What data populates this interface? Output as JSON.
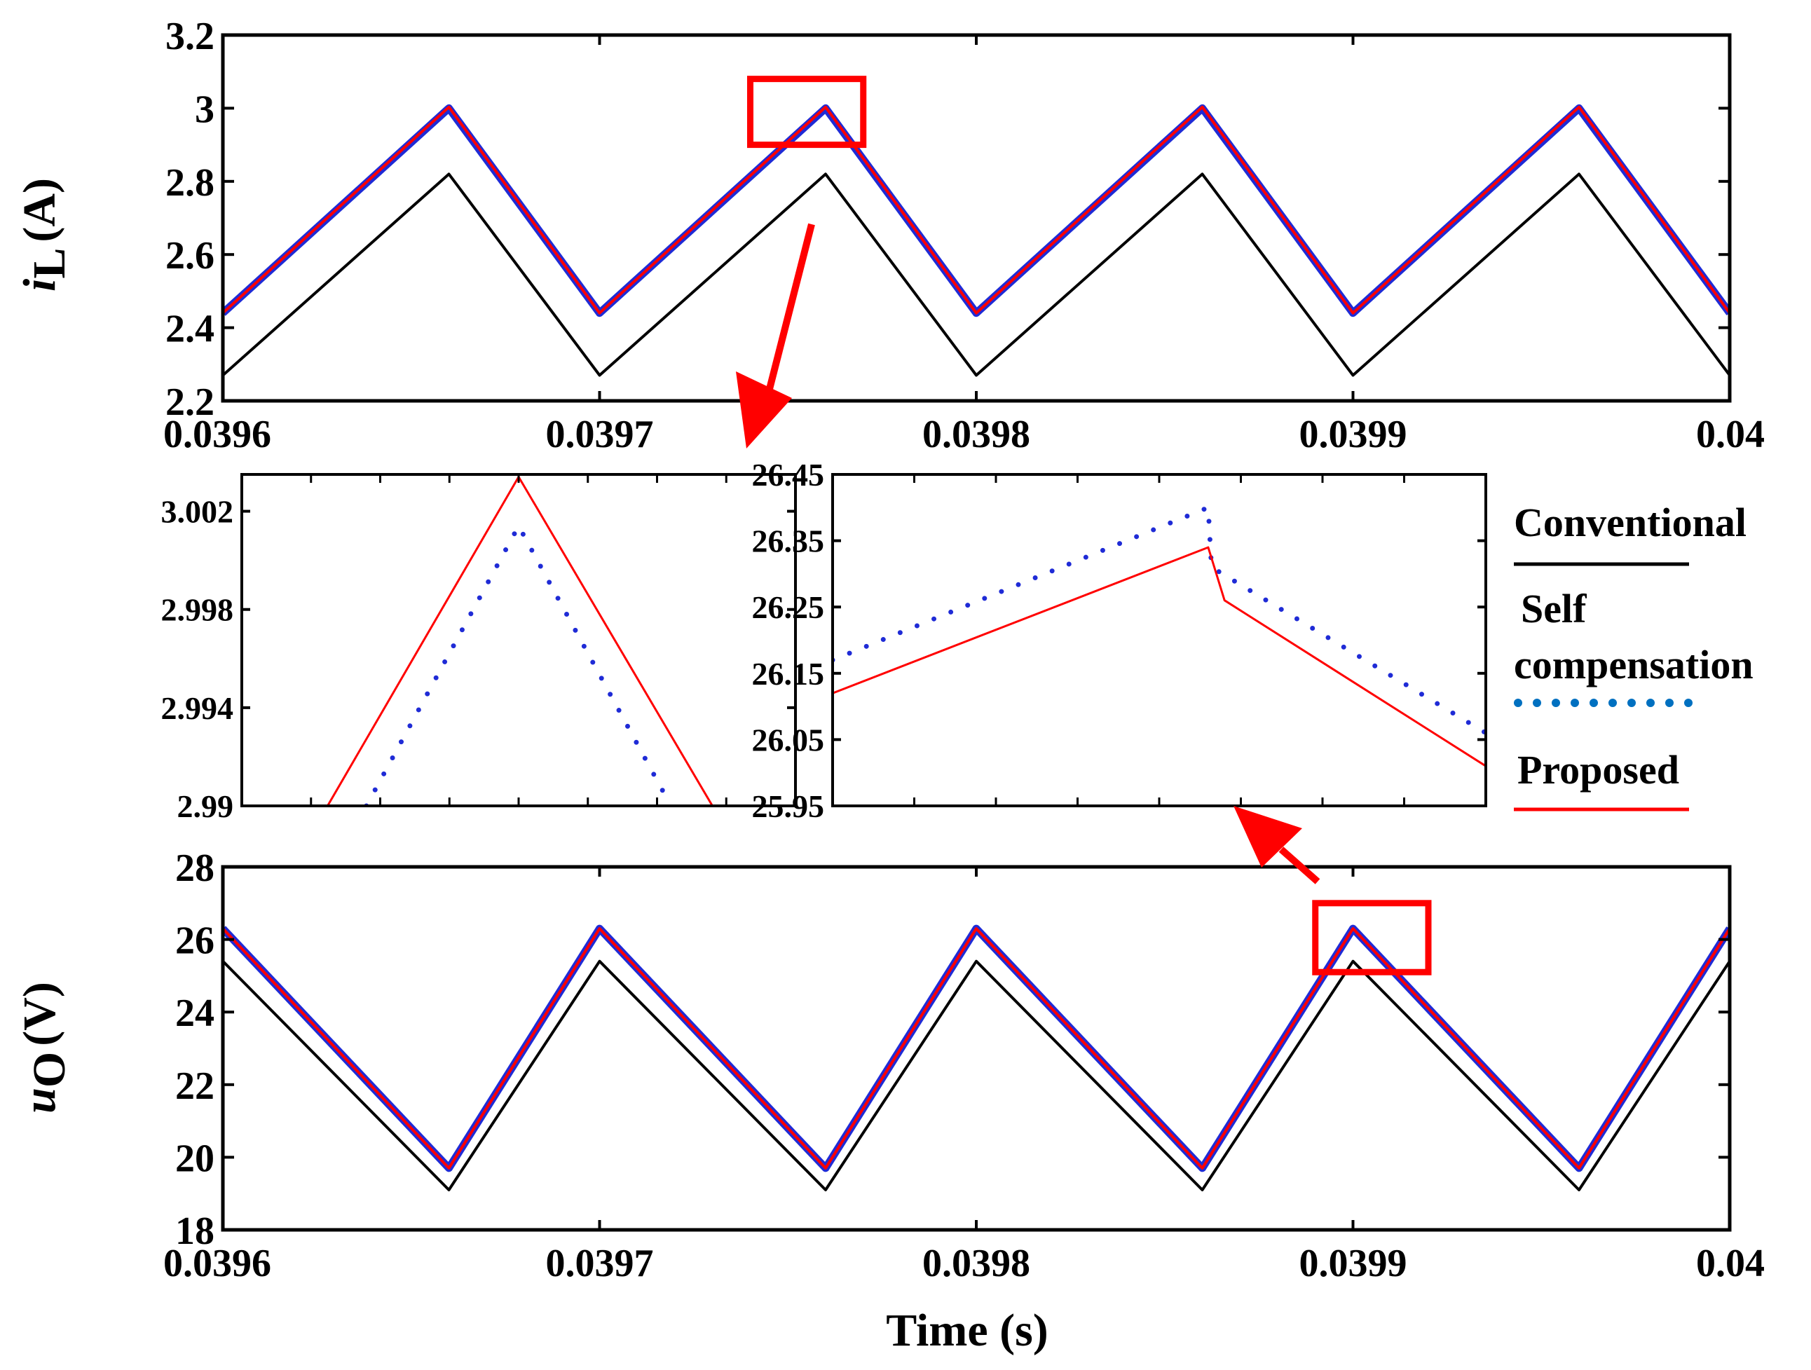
{
  "chart_data": [
    {
      "type": "line",
      "id": "top",
      "title": "",
      "xlabel": "",
      "ylabel": {
        "main": "i",
        "sub": "L",
        "unit": "(A)"
      },
      "xlim": [
        0.0396,
        0.04
      ],
      "ylim": [
        2.2,
        3.2
      ],
      "xticks": [
        0.0396,
        0.0397,
        0.0398,
        0.0399,
        0.04
      ],
      "xtick_labels": [
        "0.0396",
        "0.0397",
        "0.0398",
        "0.0399",
        "0.04"
      ],
      "yticks": [
        2.2,
        2.4,
        2.6,
        2.8,
        3.0,
        3.2
      ],
      "ytick_labels": [
        "2.2",
        "2.4",
        "2.6",
        "2.8",
        "3",
        "3.2"
      ],
      "series": [
        {
          "name": "Conventional",
          "x": [
            0.0396,
            0.03966,
            0.0397,
            0.03976,
            0.0398,
            0.03986,
            0.0399,
            0.03996,
            0.04
          ],
          "values": [
            2.27,
            2.82,
            2.27,
            2.82,
            2.27,
            2.82,
            2.27,
            2.82,
            2.27
          ]
        },
        {
          "name": "Self compensation",
          "x": [
            0.0396,
            0.03966,
            0.0397,
            0.03976,
            0.0398,
            0.03986,
            0.0399,
            0.03996,
            0.04
          ],
          "values": [
            2.44,
            3.0,
            2.44,
            3.0,
            2.44,
            3.0,
            2.44,
            3.0,
            2.44
          ]
        },
        {
          "name": "Proposed",
          "x": [
            0.0396,
            0.03966,
            0.0397,
            0.03976,
            0.0398,
            0.03986,
            0.0399,
            0.03996,
            0.04
          ],
          "values": [
            2.44,
            3.003,
            2.44,
            3.003,
            2.44,
            3.003,
            2.44,
            3.003,
            2.44
          ]
        }
      ],
      "highlight_box": {
        "x": [
          0.03974,
          0.03977
        ],
        "y": [
          2.9,
          3.08
        ]
      }
    },
    {
      "type": "line",
      "id": "bottom",
      "title": "",
      "xlabel": "Time (s)",
      "ylabel": {
        "main": "u",
        "sub": "O",
        "unit": "(V)"
      },
      "xlim": [
        0.0396,
        0.04
      ],
      "ylim": [
        18,
        28
      ],
      "xticks": [
        0.0396,
        0.0397,
        0.0398,
        0.0399,
        0.04
      ],
      "xtick_labels": [
        "0.0396",
        "0.0397",
        "0.0398",
        "0.0399",
        "0.04"
      ],
      "yticks": [
        18,
        20,
        22,
        24,
        26,
        28
      ],
      "ytick_labels": [
        "18",
        "20",
        "22",
        "24",
        "26",
        "28"
      ],
      "series": [
        {
          "name": "Conventional",
          "x": [
            0.0396,
            0.03966,
            0.0397,
            0.03976,
            0.0398,
            0.03986,
            0.0399,
            0.03996,
            0.04
          ],
          "values": [
            25.4,
            19.1,
            25.4,
            19.1,
            25.4,
            19.1,
            25.4,
            19.1,
            25.4
          ]
        },
        {
          "name": "Self compensation",
          "x": [
            0.0396,
            0.03966,
            0.0397,
            0.03976,
            0.0398,
            0.03986,
            0.0399,
            0.03996,
            0.04
          ],
          "values": [
            26.3,
            19.7,
            26.3,
            19.7,
            26.3,
            19.7,
            26.3,
            19.7,
            26.3
          ]
        },
        {
          "name": "Proposed",
          "x": [
            0.0396,
            0.03966,
            0.0397,
            0.03976,
            0.0398,
            0.03986,
            0.0399,
            0.03996,
            0.04
          ],
          "values": [
            26.3,
            19.7,
            26.3,
            19.7,
            26.3,
            19.7,
            26.3,
            19.7,
            26.3
          ]
        }
      ],
      "highlight_box": {
        "x": [
          0.03989,
          0.03992
        ],
        "y": [
          25.1,
          27.0
        ]
      }
    },
    {
      "type": "line",
      "id": "zoom-left",
      "title": "",
      "xlim": [
        0,
        1
      ],
      "ylim": [
        2.99,
        3.0035
      ],
      "yticks": [
        2.99,
        2.994,
        2.998,
        3.002
      ],
      "ytick_labels": [
        "2.99",
        "2.994",
        "2.998",
        "3.002"
      ],
      "series": [
        {
          "name": "Proposed",
          "x": [
            0.155,
            0.5,
            0.85
          ],
          "values": [
            2.99,
            3.0034,
            2.99
          ]
        },
        {
          "name": "Self compensation",
          "x": [
            0.225,
            0.5,
            0.775
          ],
          "values": [
            2.99,
            3.0014,
            2.99
          ]
        }
      ]
    },
    {
      "type": "line",
      "id": "zoom-right",
      "title": "",
      "xlim": [
        0,
        1
      ],
      "ylim": [
        25.95,
        26.45
      ],
      "yticks": [
        25.95,
        26.05,
        26.15,
        26.25,
        26.35,
        26.45
      ],
      "ytick_labels": [
        "25.95",
        "26.05",
        "26.15",
        "26.25",
        "26.35",
        "26.45"
      ],
      "series": [
        {
          "name": "Self compensation",
          "x": [
            0.0,
            0.575,
            0.58,
            1.0
          ],
          "values": [
            26.17,
            26.4,
            26.31,
            26.06
          ]
        },
        {
          "name": "Proposed",
          "x": [
            0.0,
            0.575,
            0.6,
            1.0
          ],
          "values": [
            26.12,
            26.34,
            26.26,
            26.01
          ]
        }
      ]
    }
  ],
  "legend": {
    "entries": [
      {
        "lines": [
          "Conventional"
        ],
        "color": "#000000",
        "style": "solid"
      },
      {
        "lines": [
          "Self",
          "compensation"
        ],
        "color": "#0070C0",
        "style": "dotted"
      },
      {
        "lines": [
          "Proposed"
        ],
        "color": "#ff0000",
        "style": "solid"
      }
    ],
    "position": "right-middle"
  },
  "colors": {
    "conventional": "#000000",
    "self_compensation": "#1f2bd6",
    "proposed": "#ff0000",
    "annotation": "#ff0000"
  }
}
